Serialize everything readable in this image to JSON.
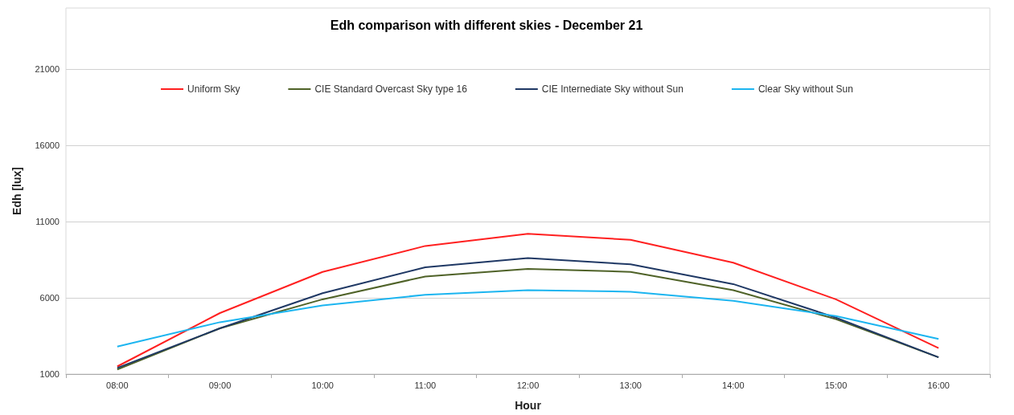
{
  "chart_data": {
    "type": "line",
    "title": "Edh comparison with different skies - December 21",
    "xlabel": "Hour",
    "ylabel": "Edh [lux]",
    "categories": [
      "08:00",
      "09:00",
      "10:00",
      "11:00",
      "12:00",
      "13:00",
      "14:00",
      "15:00",
      "16:00"
    ],
    "series": [
      {
        "name": "Uniform Sky",
        "color": "#ff2020",
        "values": [
          1500,
          5000,
          7700,
          9400,
          10200,
          9800,
          8300,
          5900,
          2700
        ]
      },
      {
        "name": "CIE Standard Overcast Sky type 16",
        "color": "#4f6228",
        "values": [
          1300,
          4000,
          5900,
          7400,
          7900,
          7700,
          6500,
          4600,
          2100
        ]
      },
      {
        "name": "CIE Internediate Sky without Sun",
        "color": "#1f3864",
        "values": [
          1400,
          4000,
          6300,
          8000,
          8600,
          8200,
          6900,
          4700,
          2100
        ]
      },
      {
        "name": "Clear Sky without Sun",
        "color": "#1cb5f0",
        "values": [
          2800,
          4400,
          5500,
          6200,
          6500,
          6400,
          5800,
          4800,
          3300
        ]
      }
    ],
    "ylim": [
      1000,
      25000
    ],
    "yticks": [
      1000,
      6000,
      11000,
      16000,
      21000
    ],
    "grid": "y",
    "legend": "top",
    "marker": "none",
    "line_style": "solid"
  }
}
